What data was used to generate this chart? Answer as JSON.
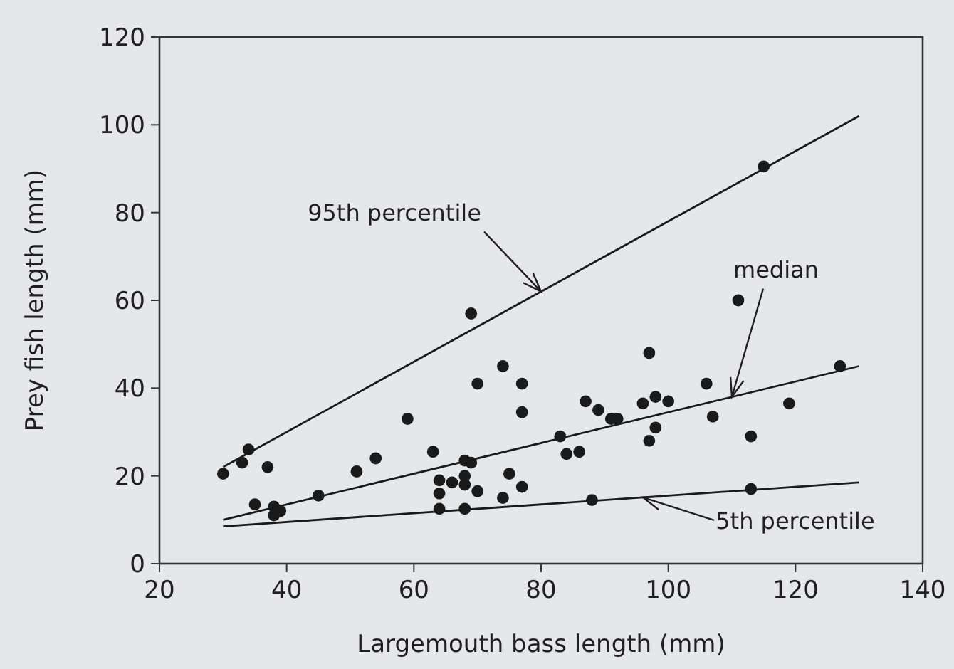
{
  "chart_data": {
    "type": "scatter",
    "xlabel": "Largemouth bass length (mm)",
    "ylabel": "Prey fish length (mm)",
    "xlim": [
      20,
      140
    ],
    "xticks": [
      20,
      40,
      60,
      80,
      100,
      120,
      140
    ],
    "ylim": [
      0,
      120
    ],
    "yticks": [
      0,
      20,
      40,
      60,
      80,
      100,
      120
    ],
    "grid": false,
    "series": [
      {
        "marker": "circle",
        "color": "#1a1a1a",
        "x": [
          30,
          33,
          34,
          35,
          37,
          38,
          38,
          39,
          45,
          51,
          54,
          59,
          63,
          64,
          64,
          64,
          66,
          68,
          68,
          68,
          68,
          69,
          69,
          70,
          70,
          74,
          74,
          75,
          77,
          77,
          77,
          83,
          84,
          86,
          87,
          88,
          89,
          91,
          92,
          96,
          97,
          97,
          98,
          98,
          100,
          106,
          107,
          111,
          113,
          113,
          115,
          119,
          127
        ],
        "values": [
          20.5,
          23,
          26,
          13.5,
          22,
          13,
          11,
          12,
          15.5,
          21,
          24,
          33,
          25.5,
          19,
          16,
          12.5,
          18.5,
          20,
          18,
          12.5,
          23.5,
          23,
          57,
          41,
          16.5,
          45,
          15,
          20.5,
          41,
          34.5,
          17.5,
          29,
          25,
          25.5,
          37,
          14.5,
          35,
          33,
          33,
          36.5,
          48,
          28,
          31,
          38,
          37,
          41,
          33.5,
          60,
          29,
          17,
          90.5,
          36.5,
          45
        ]
      },
      {
        "type": "line",
        "marker": "none",
        "color": "#1a1a1a",
        "line_style": "solid",
        "x": [
          30,
          130
        ],
        "values": [
          22,
          102
        ]
      },
      {
        "type": "line",
        "marker": "none",
        "color": "#1a1a1a",
        "line_style": "solid",
        "x": [
          30,
          130
        ],
        "values": [
          10,
          45
        ]
      },
      {
        "type": "line",
        "marker": "none",
        "color": "#1a1a1a",
        "line_style": "solid",
        "x": [
          30,
          130
        ],
        "values": [
          8.5,
          18.5
        ]
      }
    ],
    "annotations": [
      {
        "text": "95th percentile",
        "x": 80,
        "y": 62
      },
      {
        "text": "median",
        "x": 110,
        "y": 38
      },
      {
        "text": "5th percentile",
        "x": 96,
        "y": 15.1
      }
    ]
  }
}
